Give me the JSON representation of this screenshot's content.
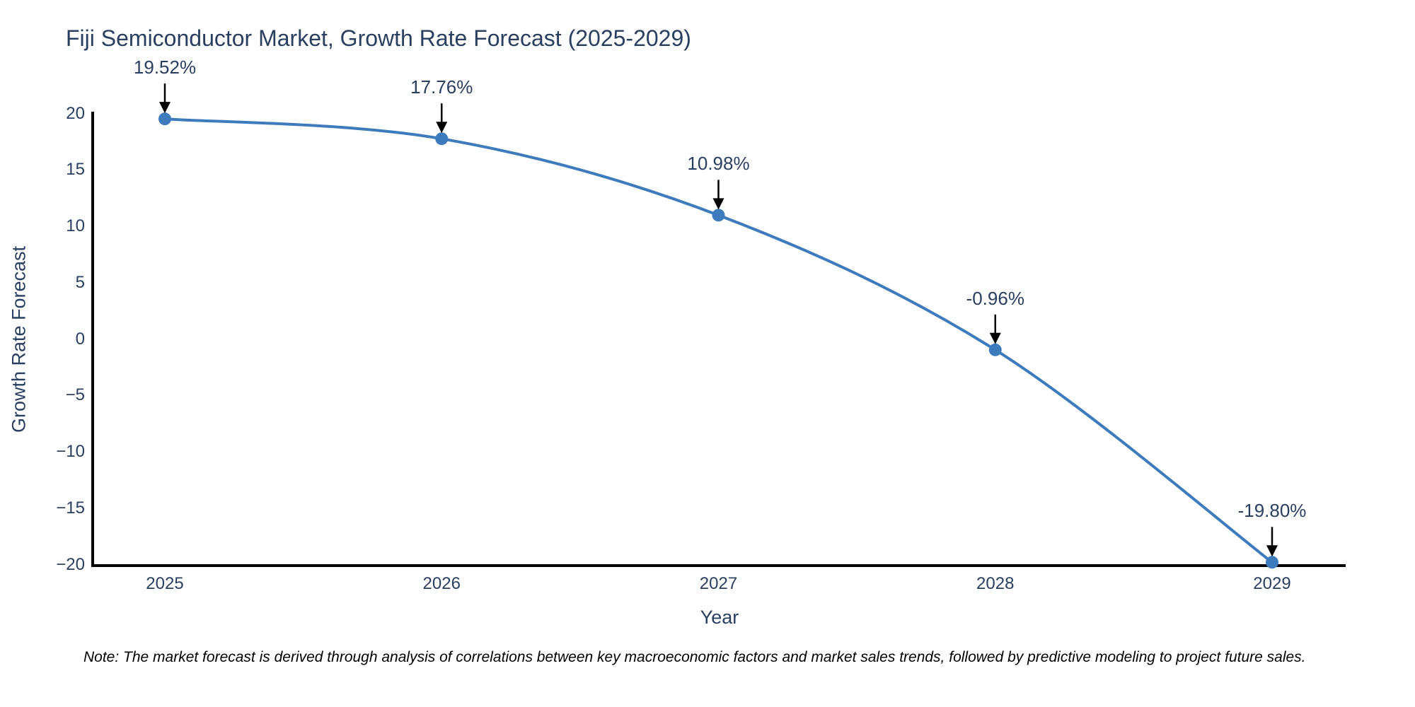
{
  "title": "Fiji Semiconductor Market, Growth Rate Forecast (2025-2029)",
  "note": "Note: The market forecast is derived through analysis of correlations between key macroeconomic factors and market sales trends, followed by predictive modeling to project future sales.",
  "chart_data": {
    "type": "line",
    "title": "Fiji Semiconductor Market, Growth Rate Forecast (2025-2029)",
    "xlabel": "Year",
    "ylabel": "Growth Rate Forecast",
    "x": [
      2025,
      2026,
      2027,
      2028,
      2029
    ],
    "x_tick_labels": [
      "2025",
      "2026",
      "2027",
      "2028",
      "2029"
    ],
    "series": [
      {
        "name": "Growth Rate Forecast",
        "values": [
          19.52,
          17.76,
          10.98,
          -0.96,
          -19.8
        ]
      }
    ],
    "point_labels": [
      "19.52%",
      "17.76%",
      "10.98%",
      "-0.96%",
      "-19.80%"
    ],
    "ylim": [
      -20,
      20
    ],
    "yticks": [
      20,
      15,
      10,
      5,
      0,
      -5,
      -10,
      -15,
      -20
    ],
    "ytick_labels": [
      "20",
      "15",
      "10",
      "5",
      "0",
      "−5",
      "−10",
      "−15",
      "−20"
    ],
    "line_shape": "spline",
    "grid": false,
    "legend_position": "none",
    "line_color": "#3d7bbc",
    "marker_color": "#3d7bbc",
    "axis_color": "#000000",
    "annotation_arrow_color": "#000000",
    "text_color": "#2a3f5f",
    "background_color": "#ffffff"
  }
}
